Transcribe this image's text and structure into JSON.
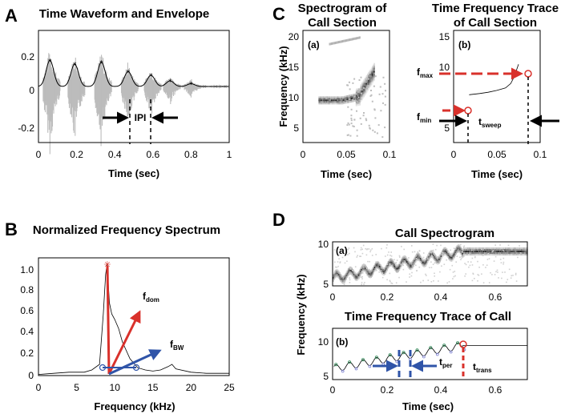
{
  "panels": {
    "A": {
      "label": "A",
      "title": "Time Waveform and Envelope",
      "xlabel": "Time (sec)",
      "xticks": [
        "0",
        "0.2",
        "0.4",
        "0.6",
        "0.8",
        "1"
      ],
      "yticks": [
        "0.2",
        "0",
        "-0.2"
      ],
      "annotation": "IPI",
      "chart_data": {
        "type": "line",
        "xlim": [
          0,
          1
        ],
        "ylim": [
          -0.3,
          0.3
        ],
        "envelope_peaks_x": [
          0.06,
          0.19,
          0.33,
          0.47,
          0.59,
          0.69,
          0.8
        ],
        "envelope_peaks_y": [
          0.14,
          0.12,
          0.13,
          0.08,
          0.06,
          0.03,
          0.015
        ],
        "ipi_markers_x": [
          0.48,
          0.59
        ]
      }
    },
    "B": {
      "label": "B",
      "title": "Normalized Frequency Spectrum",
      "xlabel": "Frequency (kHz)",
      "xticks": [
        "0",
        "5",
        "10",
        "15",
        "20",
        "25"
      ],
      "yticks": [
        "1.0",
        "0.8",
        "0.6",
        "0.4",
        "0.2",
        "0"
      ],
      "ann_dom": "f",
      "ann_dom_sub": "dom",
      "ann_bw": "f",
      "ann_bw_sub": "BW",
      "chart_data": {
        "type": "line",
        "xlim": [
          0,
          25
        ],
        "ylim": [
          0,
          1.05
        ],
        "x": [
          0,
          2,
          4,
          6,
          7,
          8,
          8.5,
          8.8,
          9.0,
          9.3,
          9.6,
          10,
          10.5,
          11,
          12,
          13,
          14,
          15,
          16,
          17,
          17.5,
          18,
          20,
          22,
          25
        ],
        "y": [
          0.01,
          0.02,
          0.03,
          0.03,
          0.05,
          0.1,
          0.55,
          0.9,
          1.0,
          0.65,
          0.55,
          0.5,
          0.42,
          0.3,
          0.15,
          0.07,
          0.05,
          0.04,
          0.05,
          0.08,
          0.1,
          0.06,
          0.03,
          0.02,
          0.02
        ],
        "peak": [
          9.0,
          1.0
        ],
        "bw_points": [
          [
            8.3,
            0.07
          ],
          [
            12.8,
            0.07
          ]
        ]
      }
    },
    "C": {
      "label": "C",
      "title_a_line1": "Spectrogram of",
      "title_a_line2": "Call Section",
      "title_b_line1": "Time Frequency Trace",
      "title_b_line2": "of Call Section",
      "ylabel": "Frequency (kHz)",
      "xlabel": "Time (sec)",
      "sub_a": "(a)",
      "sub_b": "(b)",
      "xticks": [
        "0",
        "0.05",
        "0.1"
      ],
      "yticks_a": [
        "20",
        "15",
        "10",
        "5"
      ],
      "yticks_b": [
        "10",
        "5"
      ],
      "yticks_b_top": "15",
      "fmax": "f",
      "fmax_sub": "max",
      "fmin": "f",
      "fmin_sub": "min",
      "tsweep": "t",
      "tsweep_sub": "sweep",
      "chart_data": {
        "type": "line",
        "xlim": [
          0,
          0.1
        ],
        "ylim_a": [
          2,
          20
        ],
        "ylim_b": [
          2,
          20
        ],
        "trace_x": [
          0.018,
          0.03,
          0.04,
          0.05,
          0.06,
          0.066,
          0.07,
          0.075
        ],
        "trace_y": [
          8.9,
          9.1,
          9.3,
          9.6,
          10.0,
          10.7,
          11.8,
          13.8
        ],
        "fmin_point": [
          0.018,
          8.9
        ],
        "fmax_point": [
          0.075,
          13.8
        ]
      }
    },
    "D": {
      "label": "D",
      "title_a": "Call Spectrogram",
      "title_b": "Time Frequency Trace of Call",
      "ylabel": "Frequency (kHz)",
      "xlabel": "Time (sec)",
      "sub_a": "(a)",
      "sub_b": "(b)",
      "xticks_a": [
        "0",
        "0.2",
        "0.4",
        "0.6"
      ],
      "xticks_b": [
        "0",
        "0.2",
        "0.4",
        "0.6"
      ],
      "yticks": [
        "10",
        "5"
      ],
      "yticks_b": [
        "10",
        "5"
      ],
      "tper": "t",
      "tper_sub": "per",
      "ttrans": "t",
      "ttrans_sub": "trans",
      "chart_data": {
        "type": "line",
        "xlim": [
          0,
          0.72
        ],
        "ylim": [
          5,
          10
        ],
        "trace_x_start": 0,
        "trace_x_transition": 0.48,
        "trace_y_start": 6.0,
        "trace_y_plateau": 9.0,
        "oscillation_period": 0.05,
        "tper_markers_x": [
          0.25,
          0.29
        ],
        "ttrans_x": 0.48
      }
    }
  },
  "colors": {
    "red": "#d9312b",
    "blue": "#2f54a8",
    "gray": "#bcbcbc"
  }
}
